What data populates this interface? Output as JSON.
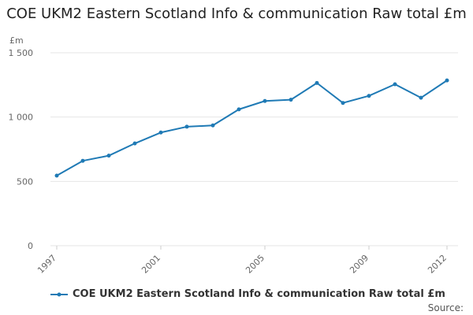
{
  "chart_data": {
    "type": "line",
    "title": "COE UKM2 Eastern Scotland Info & communication Raw total £m",
    "ylabel": "£m",
    "xlabel": "",
    "ylim": [
      0,
      1500
    ],
    "yticks": [
      0,
      500,
      1000,
      1500
    ],
    "ytick_labels": [
      "0",
      "500",
      "1 000",
      "1 500"
    ],
    "xlim": [
      1997,
      2012
    ],
    "xtick_labels": [
      "1997",
      "2001",
      "2005",
      "2009",
      "2012"
    ],
    "x": [
      1997,
      1998,
      1999,
      2000,
      2001,
      2002,
      2003,
      2004,
      2005,
      2006,
      2007,
      2008,
      2009,
      2010,
      2011,
      2012
    ],
    "series": [
      {
        "name": "COE UKM2 Eastern Scotland Info & communication Raw total £m",
        "values": [
          545,
          660,
          700,
          795,
          880,
          925,
          935,
          1060,
          1125,
          1135,
          1265,
          1110,
          1165,
          1255,
          1150,
          1285
        ]
      }
    ],
    "grid": true,
    "legend": "bottom-left",
    "colors": {
      "line": "#1f7ab5",
      "grid": "#e6e6e6",
      "axis_text": "#666666"
    }
  },
  "footer": {
    "source": "Source:"
  }
}
